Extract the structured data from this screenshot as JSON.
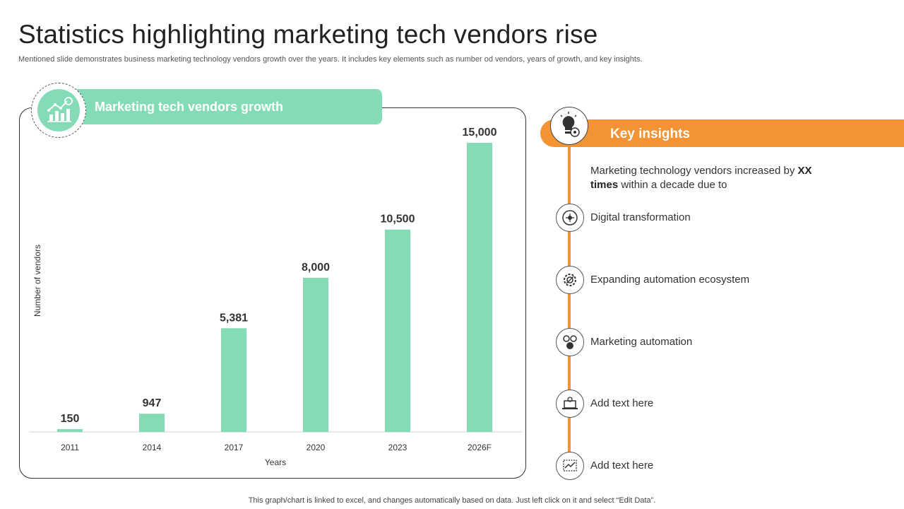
{
  "header": {
    "title": "Statistics highlighting marketing tech vendors rise",
    "subtitle": "Mentioned slide demonstrates business marketing technology vendors growth over the years. It includes key elements such as number od vendors, years of growth, and key insights."
  },
  "chart_panel": {
    "heading": "Marketing tech vendors growth"
  },
  "chart_data": {
    "type": "bar",
    "categories": [
      "2011",
      "2014",
      "2017",
      "2020",
      "2023",
      "2026F"
    ],
    "values": [
      150,
      947,
      5381,
      8000,
      10500,
      15000
    ],
    "value_labels": [
      "150",
      "947",
      "5,381",
      "8,000",
      "10,500",
      "15,000"
    ],
    "xlabel": "Years",
    "ylabel": "Number of vendors",
    "ylim": [
      0,
      15000
    ],
    "grid": false,
    "bar_color": "#84dcb6"
  },
  "key_insights": {
    "title": "Key insights",
    "intro_pre": "Marketing technology vendors increased by ",
    "intro_bold1": "XX",
    "intro_bold2": "times",
    "intro_post": " within a decade due to",
    "items": [
      {
        "label": "Digital transformation",
        "icon": "digital-transformation-icon"
      },
      {
        "label": "Expanding automation ecosystem",
        "icon": "automation-gear-icon"
      },
      {
        "label": "Marketing automation",
        "icon": "marketing-automation-icon"
      },
      {
        "label": "Add text here",
        "icon": "laptop-gear-icon"
      },
      {
        "label": "Add text here",
        "icon": "chart-analysis-icon"
      }
    ],
    "accent_color": "#f39333"
  },
  "footer": {
    "note": "This graph/chart is linked to excel,  and changes automatically based on data. Just left click on it and select “Edit Data”."
  }
}
